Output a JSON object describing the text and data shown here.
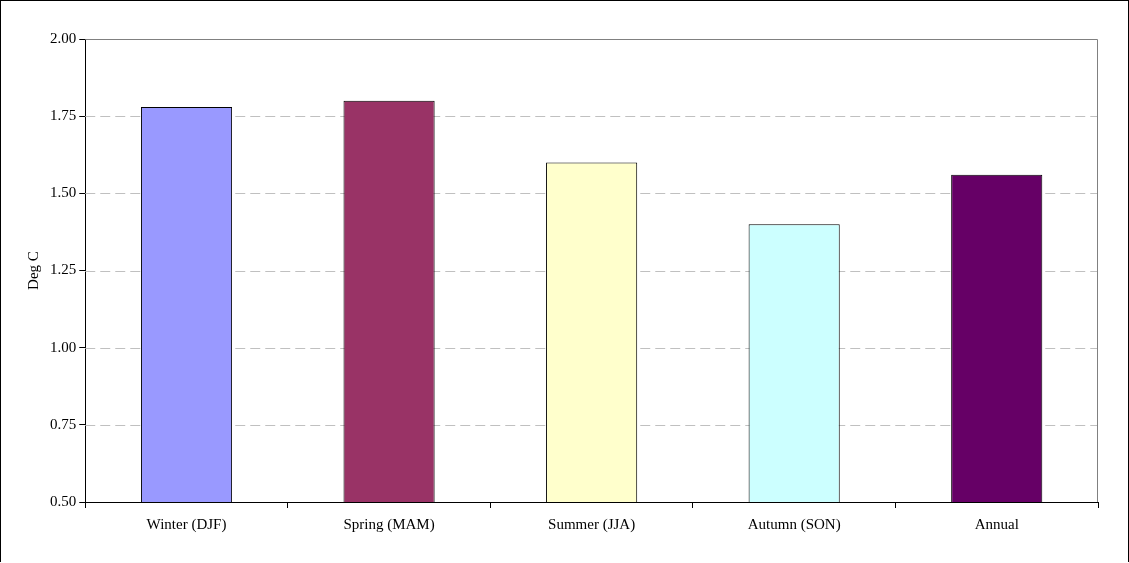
{
  "chart_data": {
    "type": "bar",
    "ylabel": "Deg C",
    "categories": [
      "Winter (DJF)",
      "Spring (MAM)",
      "Summer (JJA)",
      "Autumn (SON)",
      "Annual"
    ],
    "values": [
      1.78,
      1.8,
      1.6,
      1.4,
      1.56
    ],
    "colors": [
      "#9999ff",
      "#993366",
      "#ffffcc",
      "#ccffff",
      "#660066"
    ],
    "ylim": [
      0.5,
      2.0
    ],
    "yticks": [
      {
        "value": 0.5,
        "label": "0.50"
      },
      {
        "value": 0.75,
        "label": "0.75"
      },
      {
        "value": 1.0,
        "label": "1.00"
      },
      {
        "value": 1.25,
        "label": "1.25"
      },
      {
        "value": 1.5,
        "label": "1.50"
      },
      {
        "value": 1.75,
        "label": "1.75"
      },
      {
        "value": 2.0,
        "label": "2.00"
      }
    ],
    "grid": "y",
    "legend": false
  }
}
